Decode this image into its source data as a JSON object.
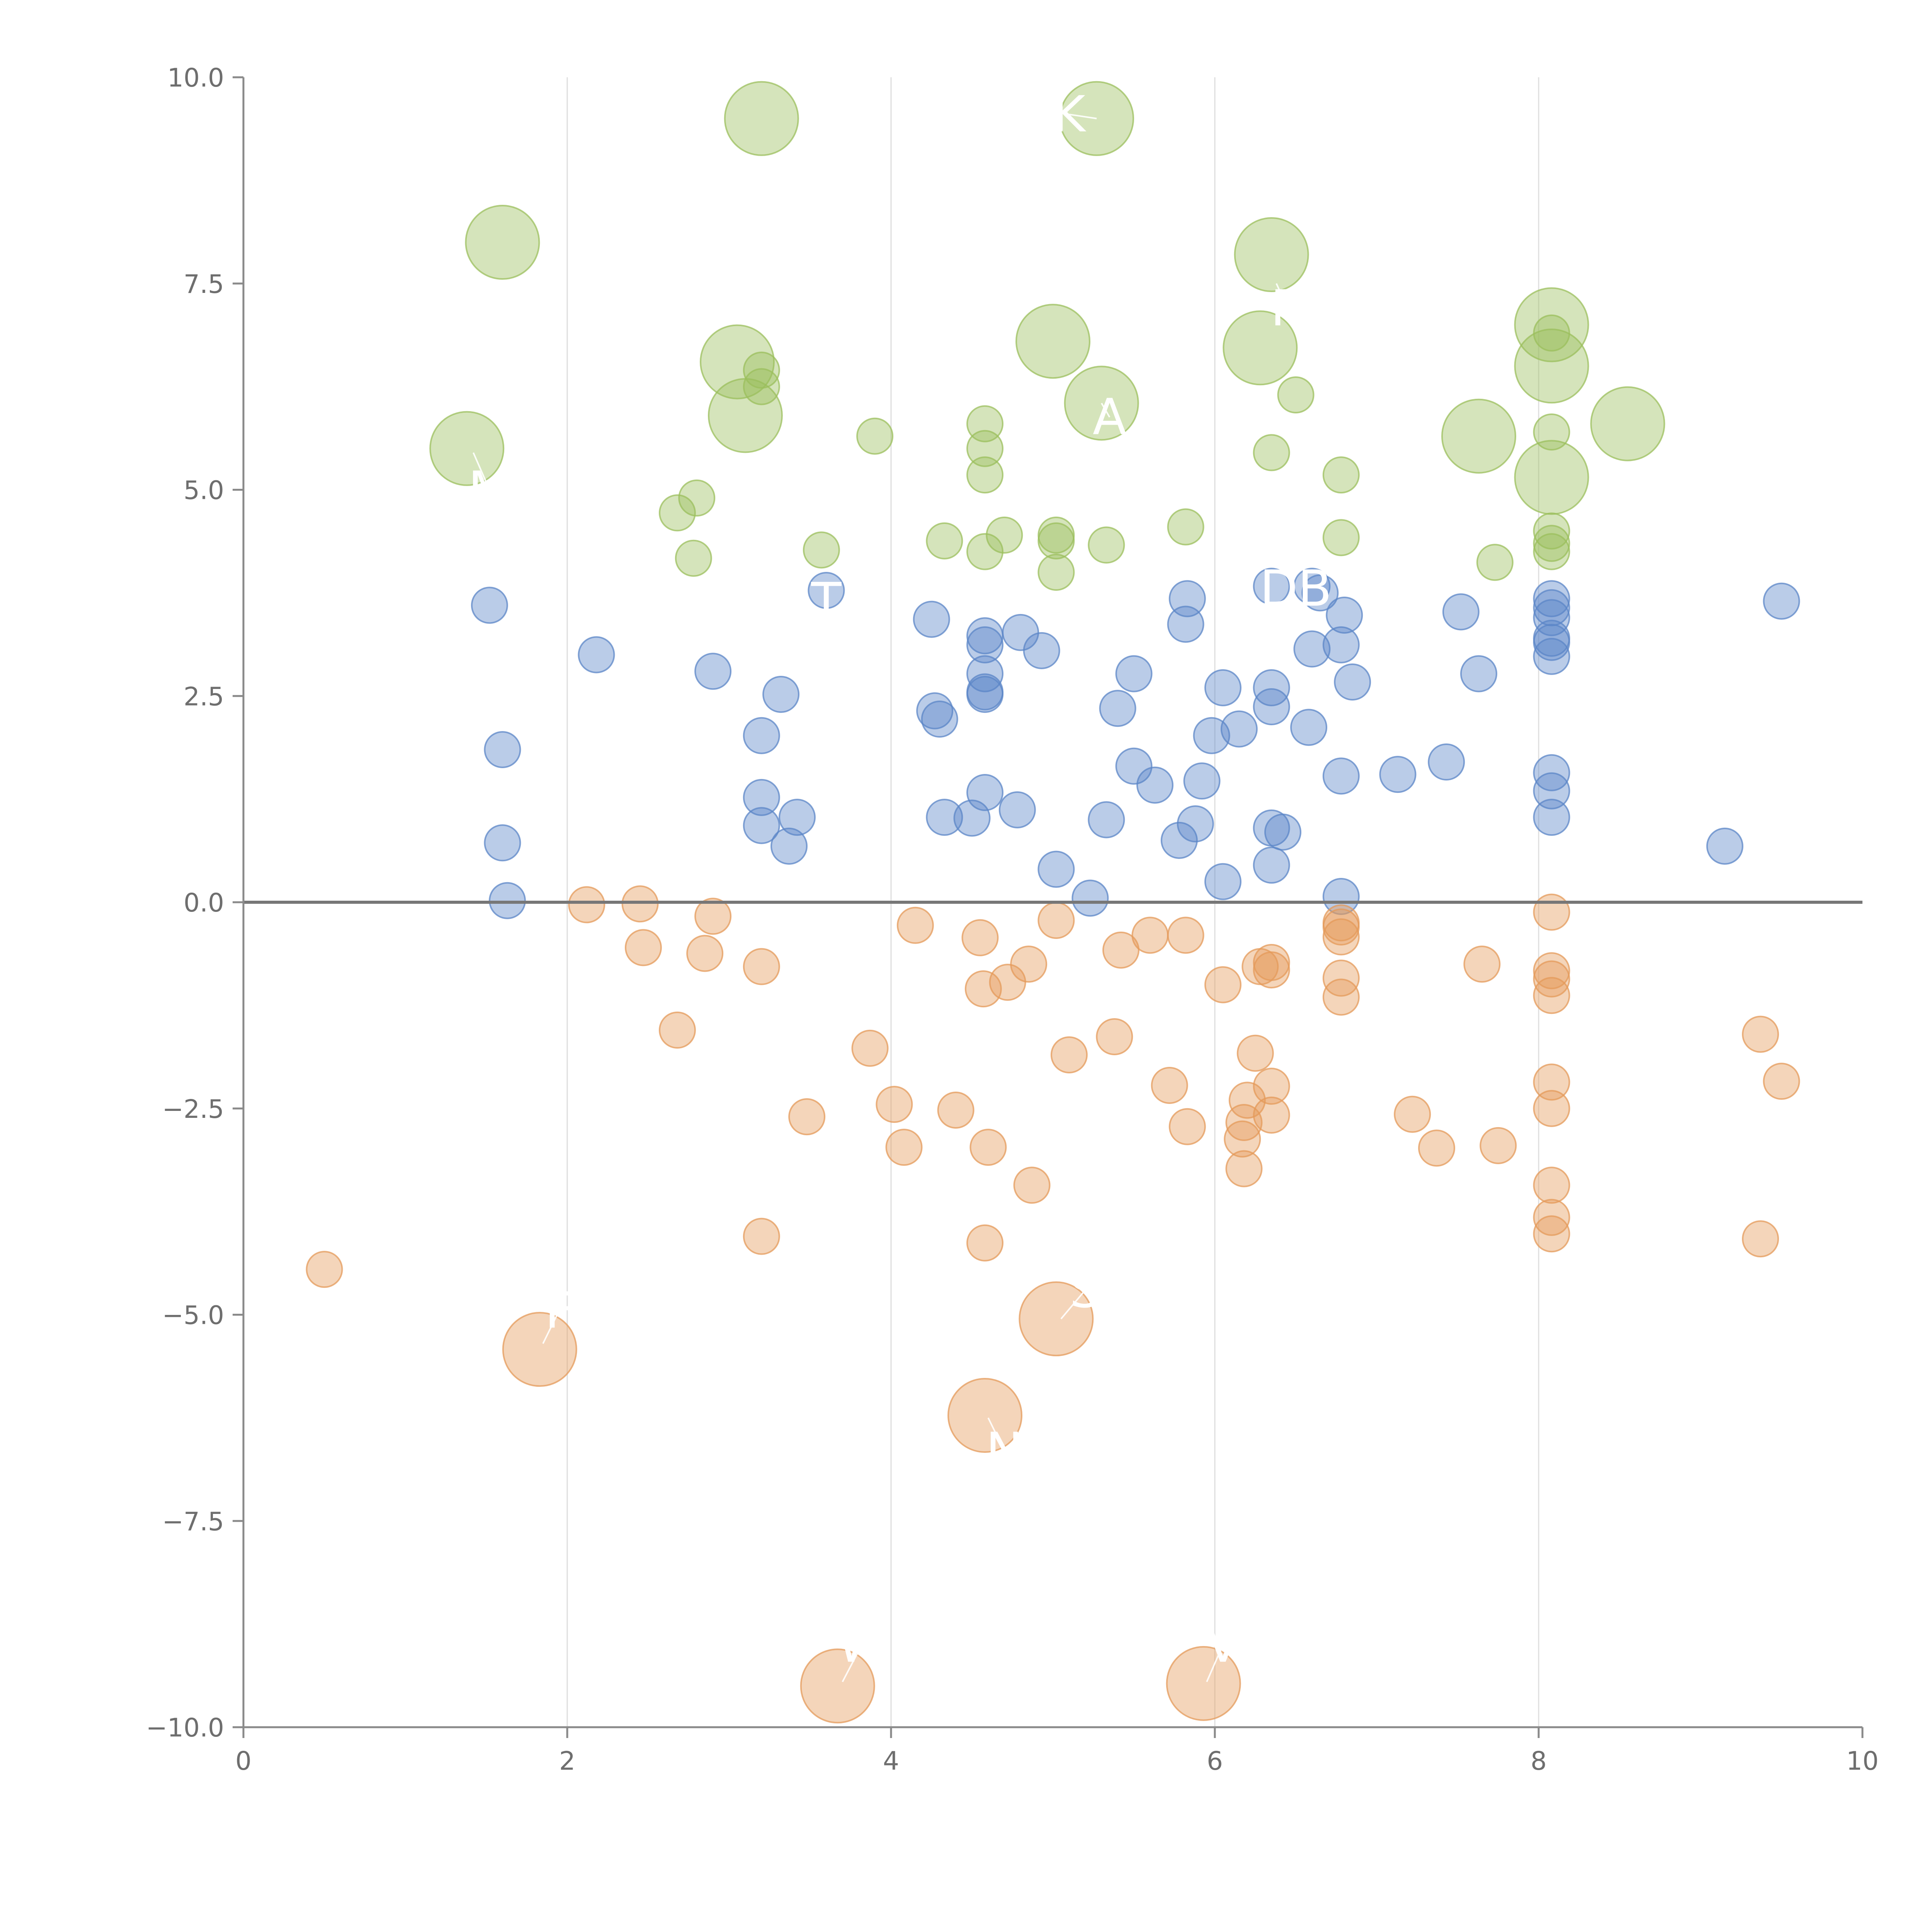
{
  "chart_data": {
    "type": "scatter",
    "title": "",
    "xlabel": "",
    "ylabel": "",
    "xlim": [
      0,
      10
    ],
    "ylim": [
      -10,
      10
    ],
    "x_ticks": [
      "0",
      "2",
      "4",
      "6",
      "8",
      "10"
    ],
    "y_ticks": [
      "−10.0",
      "−7.5",
      "−5.0",
      "−2.5",
      "0.0",
      "2.5",
      "5.0",
      "7.5",
      "10.0"
    ],
    "grid": "vertical gridlines at x ticks",
    "zero_line": true,
    "colors": {
      "green": "#9bbf5c",
      "blue": "#5b86c7",
      "orange": "#e49a5a"
    },
    "series": [
      {
        "color": "green",
        "points": [
          [
            1.6,
            8.0,
            "L"
          ],
          [
            3.2,
            9.5,
            "L"
          ],
          [
            5.27,
            9.5,
            "L"
          ],
          [
            6.35,
            7.85,
            "L"
          ],
          [
            1.38,
            5.5,
            "L"
          ],
          [
            3.05,
            6.55,
            "L"
          ],
          [
            3.1,
            5.9,
            "L"
          ],
          [
            5.0,
            6.8,
            "L"
          ],
          [
            6.28,
            6.72,
            "L"
          ],
          [
            5.3,
            6.05,
            "L"
          ],
          [
            8.08,
            7.0,
            "L"
          ],
          [
            8.08,
            6.5,
            "L"
          ],
          [
            7.63,
            5.65,
            "L"
          ],
          [
            8.55,
            5.8,
            "L"
          ],
          [
            8.08,
            5.15,
            "L"
          ],
          [
            3.2,
            6.45,
            "S"
          ],
          [
            3.2,
            6.25,
            "S"
          ],
          [
            3.9,
            5.65,
            "S"
          ],
          [
            4.58,
            5.8,
            "S"
          ],
          [
            4.58,
            5.5,
            "S"
          ],
          [
            4.58,
            5.18,
            "S"
          ],
          [
            6.5,
            6.15,
            "S"
          ],
          [
            6.35,
            5.45,
            "S"
          ],
          [
            6.78,
            5.18,
            "S"
          ],
          [
            2.8,
            4.9,
            "S"
          ],
          [
            2.68,
            4.72,
            "S"
          ],
          [
            2.78,
            4.17,
            "S"
          ],
          [
            3.57,
            4.27,
            "S"
          ],
          [
            4.33,
            4.38,
            "S"
          ],
          [
            4.58,
            4.25,
            "S"
          ],
          [
            4.7,
            4.45,
            "S"
          ],
          [
            5.02,
            4.45,
            "S"
          ],
          [
            5.02,
            4.38,
            "S"
          ],
          [
            5.02,
            4.0,
            "S"
          ],
          [
            5.33,
            4.33,
            "S"
          ],
          [
            5.82,
            4.55,
            "S"
          ],
          [
            6.78,
            4.42,
            "S"
          ],
          [
            7.73,
            4.12,
            "S"
          ],
          [
            8.08,
            4.5,
            "S"
          ],
          [
            8.08,
            4.35,
            "S"
          ],
          [
            8.08,
            4.25,
            "S"
          ],
          [
            8.08,
            5.7,
            "S"
          ],
          [
            8.08,
            6.9,
            "S"
          ]
        ]
      },
      {
        "color": "blue",
        "points": [
          [
            1.52,
            3.6,
            "S"
          ],
          [
            2.18,
            3.0,
            "S"
          ],
          [
            1.6,
            1.85,
            "S"
          ],
          [
            1.6,
            0.72,
            "S"
          ],
          [
            1.63,
            0.02,
            "S"
          ],
          [
            2.9,
            2.8,
            "S"
          ],
          [
            3.2,
            2.02,
            "S"
          ],
          [
            3.32,
            2.52,
            "S"
          ],
          [
            3.2,
            1.27,
            "S"
          ],
          [
            3.2,
            0.93,
            "S"
          ],
          [
            3.42,
            1.03,
            "S"
          ],
          [
            3.37,
            0.68,
            "S"
          ],
          [
            3.6,
            3.78,
            "S"
          ],
          [
            4.25,
            3.43,
            "S"
          ],
          [
            4.27,
            2.32,
            "S"
          ],
          [
            4.3,
            2.22,
            "S"
          ],
          [
            4.33,
            1.03,
            "S"
          ],
          [
            4.5,
            1.02,
            "S"
          ],
          [
            4.58,
            3.23,
            "S"
          ],
          [
            4.58,
            3.12,
            "S"
          ],
          [
            4.58,
            2.77,
            "S"
          ],
          [
            4.58,
            2.55,
            "S"
          ],
          [
            4.58,
            2.52,
            "S"
          ],
          [
            4.58,
            1.33,
            "S"
          ],
          [
            4.78,
            1.12,
            "S"
          ],
          [
            4.8,
            3.27,
            "S"
          ],
          [
            4.93,
            3.05,
            "S"
          ],
          [
            5.02,
            0.4,
            "S"
          ],
          [
            5.23,
            0.05,
            "S"
          ],
          [
            5.33,
            1.0,
            "S"
          ],
          [
            5.4,
            2.35,
            "S"
          ],
          [
            5.5,
            2.77,
            "S"
          ],
          [
            5.5,
            1.65,
            "S"
          ],
          [
            5.63,
            1.42,
            "S"
          ],
          [
            5.78,
            0.75,
            "S"
          ],
          [
            5.83,
            3.68,
            "S"
          ],
          [
            5.82,
            3.37,
            "S"
          ],
          [
            5.88,
            0.95,
            "S"
          ],
          [
            5.92,
            1.47,
            "S"
          ],
          [
            5.98,
            2.02,
            "S"
          ],
          [
            6.05,
            2.6,
            "S"
          ],
          [
            6.05,
            0.25,
            "S"
          ],
          [
            6.15,
            2.1,
            "S"
          ],
          [
            6.35,
            3.83,
            "S"
          ],
          [
            6.35,
            2.6,
            "S"
          ],
          [
            6.35,
            2.37,
            "S"
          ],
          [
            6.35,
            0.9,
            "S"
          ],
          [
            6.35,
            0.45,
            "S"
          ],
          [
            6.42,
            0.85,
            "S"
          ],
          [
            6.6,
            3.83,
            "S"
          ],
          [
            6.65,
            3.75,
            "S"
          ],
          [
            6.6,
            3.07,
            "S"
          ],
          [
            6.58,
            2.12,
            "S"
          ],
          [
            6.78,
            3.12,
            "S"
          ],
          [
            6.78,
            1.53,
            "S"
          ],
          [
            6.78,
            0.07,
            "S"
          ],
          [
            6.8,
            3.48,
            "S"
          ],
          [
            6.85,
            2.67,
            "S"
          ],
          [
            7.13,
            1.55,
            "S"
          ],
          [
            7.43,
            1.7,
            "S"
          ],
          [
            7.52,
            3.52,
            "S"
          ],
          [
            7.63,
            2.77,
            "S"
          ],
          [
            8.08,
            3.68,
            "S"
          ],
          [
            8.08,
            3.57,
            "S"
          ],
          [
            8.08,
            3.45,
            "S"
          ],
          [
            8.08,
            3.2,
            "S"
          ],
          [
            8.08,
            3.15,
            "S"
          ],
          [
            8.08,
            2.98,
            "S"
          ],
          [
            8.08,
            1.57,
            "S"
          ],
          [
            8.08,
            1.35,
            "S"
          ],
          [
            8.08,
            1.03,
            "S"
          ],
          [
            9.15,
            0.68,
            "S"
          ],
          [
            9.5,
            3.65,
            "S"
          ]
        ]
      },
      {
        "color": "orange",
        "points": [
          [
            1.83,
            -5.42,
            "L"
          ],
          [
            5.02,
            -5.05,
            "L"
          ],
          [
            4.58,
            -6.22,
            "L"
          ],
          [
            3.67,
            -9.5,
            "L"
          ],
          [
            5.93,
            -9.47,
            "L"
          ],
          [
            0.5,
            -4.45,
            "S"
          ],
          [
            2.12,
            -0.03,
            "S"
          ],
          [
            2.45,
            -0.02,
            "S"
          ],
          [
            2.47,
            -0.55,
            "S"
          ],
          [
            2.68,
            -1.55,
            "S"
          ],
          [
            2.85,
            -0.62,
            "S"
          ],
          [
            2.9,
            -0.17,
            "S"
          ],
          [
            3.2,
            -0.78,
            "S"
          ],
          [
            3.2,
            -4.05,
            "S"
          ],
          [
            3.48,
            -2.6,
            "S"
          ],
          [
            3.87,
            -1.77,
            "S"
          ],
          [
            4.02,
            -2.45,
            "S"
          ],
          [
            4.08,
            -2.97,
            "S"
          ],
          [
            4.15,
            -0.28,
            "S"
          ],
          [
            4.4,
            -2.52,
            "S"
          ],
          [
            4.55,
            -0.43,
            "S"
          ],
          [
            4.57,
            -1.05,
            "S"
          ],
          [
            4.58,
            -4.13,
            "S"
          ],
          [
            4.6,
            -2.97,
            "S"
          ],
          [
            4.72,
            -0.97,
            "S"
          ],
          [
            4.85,
            -0.75,
            "S"
          ],
          [
            4.87,
            -3.43,
            "S"
          ],
          [
            5.02,
            -0.22,
            "S"
          ],
          [
            5.1,
            -1.85,
            "S"
          ],
          [
            5.38,
            -1.63,
            "S"
          ],
          [
            5.42,
            -0.58,
            "S"
          ],
          [
            5.6,
            -0.4,
            "S"
          ],
          [
            5.72,
            -2.22,
            "S"
          ],
          [
            5.82,
            -0.4,
            "S"
          ],
          [
            5.83,
            -2.72,
            "S"
          ],
          [
            6.05,
            -1.0,
            "S"
          ],
          [
            6.17,
            -2.87,
            "S"
          ],
          [
            6.18,
            -2.67,
            "S"
          ],
          [
            6.18,
            -3.23,
            "S"
          ],
          [
            6.2,
            -2.4,
            "S"
          ],
          [
            6.25,
            -1.83,
            "S"
          ],
          [
            6.28,
            -0.78,
            "S"
          ],
          [
            6.35,
            -0.73,
            "S"
          ],
          [
            6.35,
            -0.82,
            "S"
          ],
          [
            6.35,
            -2.23,
            "S"
          ],
          [
            6.35,
            -2.58,
            "S"
          ],
          [
            6.78,
            -0.25,
            "S"
          ],
          [
            6.78,
            -0.3,
            "S"
          ],
          [
            6.78,
            -0.42,
            "S"
          ],
          [
            6.78,
            -0.92,
            "S"
          ],
          [
            6.78,
            -1.15,
            "S"
          ],
          [
            7.22,
            -2.57,
            "S"
          ],
          [
            7.37,
            -2.98,
            "S"
          ],
          [
            7.65,
            -0.75,
            "S"
          ],
          [
            7.75,
            -2.95,
            "S"
          ],
          [
            8.08,
            -0.12,
            "S"
          ],
          [
            8.08,
            -0.83,
            "S"
          ],
          [
            8.08,
            -0.93,
            "S"
          ],
          [
            8.08,
            -1.13,
            "S"
          ],
          [
            8.08,
            -2.18,
            "S"
          ],
          [
            8.08,
            -2.5,
            "S"
          ],
          [
            8.08,
            -3.43,
            "S"
          ],
          [
            8.08,
            -3.82,
            "S"
          ],
          [
            8.08,
            -4.02,
            "S"
          ],
          [
            9.37,
            -1.6,
            "S"
          ],
          [
            9.5,
            -2.17,
            "S"
          ],
          [
            9.37,
            -4.08,
            "S"
          ]
        ]
      }
    ],
    "labels": [
      {
        "text": "K",
        "x": 5.1,
        "y": 9.55,
        "anchor_x": 5.27,
        "anchor_y": 9.5
      },
      {
        "text": "A",
        "x": 5.35,
        "y": 5.88,
        "anchor_x": 5.3,
        "anchor_y": 6.05
      },
      {
        "text": "M",
        "x": 1.52,
        "y": 5.0,
        "anchor_x": 1.42,
        "anchor_y": 5.45
      },
      {
        "text": "DB",
        "x": 6.5,
        "y": 3.8,
        "anchor_x": 6.5,
        "anchor_y": 3.8
      },
      {
        "text": "T",
        "x": 3.6,
        "y": 3.65,
        "anchor_x": 3.6,
        "anchor_y": 3.78
      },
      {
        "text": "S",
        "x": 5.2,
        "y": -4.7,
        "anchor_x": 5.05,
        "anchor_y": -5.05
      },
      {
        "text": "F",
        "x": 1.95,
        "y": -4.95,
        "anchor_x": 1.85,
        "anchor_y": -5.35
      },
      {
        "text": "N",
        "x": 4.7,
        "y": -6.65,
        "anchor_x": 4.6,
        "anchor_y": -6.25
      },
      {
        "text": "W",
        "x": 3.82,
        "y": -9.0,
        "anchor_x": 3.7,
        "anchor_y": -9.45
      },
      {
        "text": "V",
        "x": 6.05,
        "y": -9.0,
        "anchor_x": 5.95,
        "anchor_y": -9.45
      },
      {
        "text": "R",
        "x": 6.45,
        "y": 7.2,
        "anchor_x": 6.38,
        "anchor_y": 7.5
      }
    ]
  }
}
